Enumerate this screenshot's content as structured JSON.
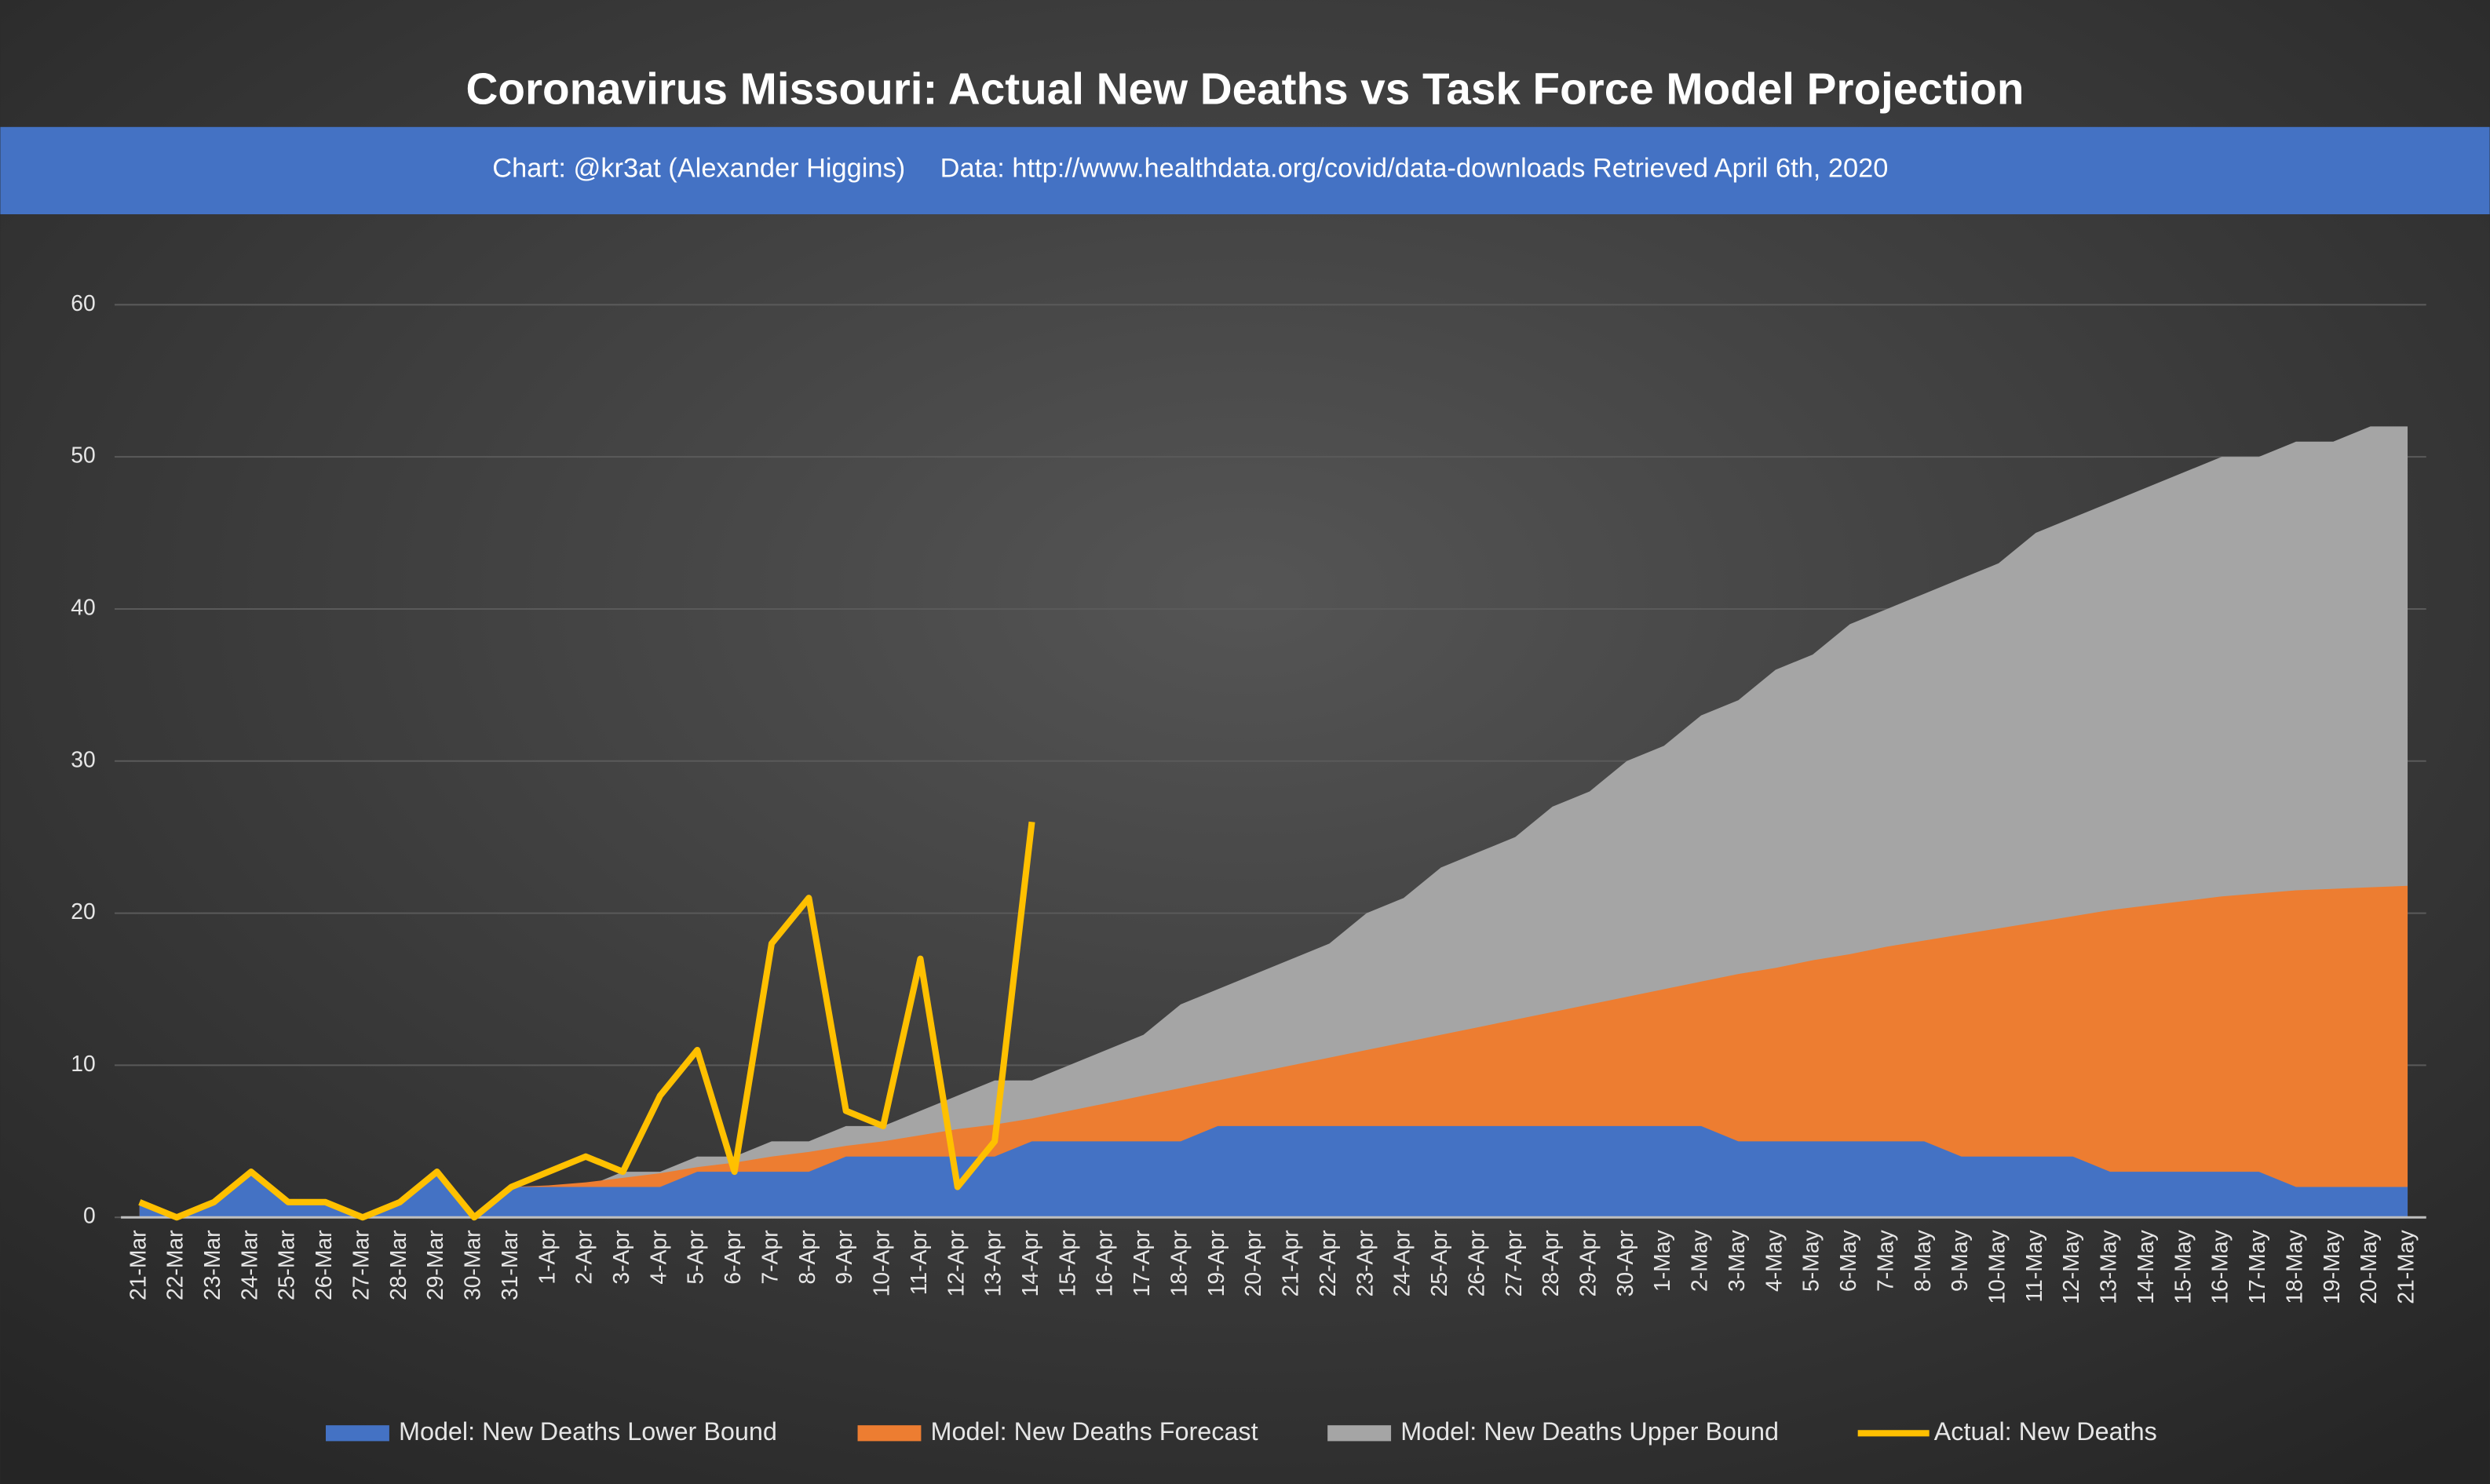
{
  "chart_data": {
    "type": "area-line",
    "title": "Coronavirus Missouri: Actual New Deaths vs Task Force Model Projection",
    "subtitle": [
      "Chart: @kr3at (Alexander Higgins)",
      "Data: http://www.healthdata.org/covid/data-downloads Retrieved April 6th, 2020"
    ],
    "categories": [
      "21-Mar",
      "22-Mar",
      "23-Mar",
      "24-Mar",
      "25-Mar",
      "26-Mar",
      "27-Mar",
      "28-Mar",
      "29-Mar",
      "30-Mar",
      "31-Mar",
      "1-Apr",
      "2-Apr",
      "3-Apr",
      "4-Apr",
      "5-Apr",
      "6-Apr",
      "7-Apr",
      "8-Apr",
      "9-Apr",
      "10-Apr",
      "11-Apr",
      "12-Apr",
      "13-Apr",
      "14-Apr",
      "15-Apr",
      "16-Apr",
      "17-Apr",
      "18-Apr",
      "19-Apr",
      "20-Apr",
      "21-Apr",
      "22-Apr",
      "23-Apr",
      "24-Apr",
      "25-Apr",
      "26-Apr",
      "27-Apr",
      "28-Apr",
      "29-Apr",
      "30-Apr",
      "1-May",
      "2-May",
      "3-May",
      "4-May",
      "5-May",
      "6-May",
      "7-May",
      "8-May",
      "9-May",
      "10-May",
      "11-May",
      "12-May",
      "13-May",
      "14-May",
      "15-May",
      "16-May",
      "17-May",
      "18-May",
      "19-May",
      "20-May",
      "21-May"
    ],
    "series": [
      {
        "name": "Model: New Deaths Upper Bound",
        "color": "#a5a5a5",
        "kind": "area",
        "values": [
          1,
          0,
          1,
          3,
          1,
          1,
          0,
          1,
          3,
          0,
          2,
          2,
          2,
          3,
          3,
          4,
          4,
          5,
          5,
          6,
          6,
          7,
          8,
          9,
          9,
          10,
          11,
          12,
          14,
          15,
          16,
          17,
          18,
          20,
          21,
          23,
          24,
          25,
          27,
          28,
          30,
          31,
          33,
          34,
          36,
          37,
          39,
          40,
          41,
          42,
          43,
          45,
          46,
          47,
          48,
          49,
          50,
          50,
          51,
          51,
          52,
          52
        ]
      },
      {
        "name": "Model: New Deaths Forecast",
        "color": "#ed7d31",
        "kind": "area",
        "values": [
          1,
          0,
          1,
          3,
          1,
          1,
          0,
          1,
          3,
          0,
          2,
          2.1,
          2.3,
          2.6,
          2.9,
          3.3,
          3.6,
          4.0,
          4.3,
          4.7,
          5.0,
          5.4,
          5.8,
          6.1,
          6.5,
          7.0,
          7.5,
          8.0,
          8.5,
          9.0,
          9.5,
          10.0,
          10.5,
          11.0,
          11.5,
          12.0,
          12.5,
          13.0,
          13.5,
          14.0,
          14.5,
          15.0,
          15.5,
          16.0,
          16.4,
          16.9,
          17.3,
          17.8,
          18.2,
          18.6,
          19.0,
          19.4,
          19.8,
          20.2,
          20.5,
          20.8,
          21.1,
          21.3,
          21.5,
          21.6,
          21.7,
          21.8
        ]
      },
      {
        "name": "Model: New Deaths Lower Bound",
        "color": "#4472c4",
        "kind": "area",
        "values": [
          1,
          0,
          1,
          3,
          1,
          1,
          0,
          1,
          3,
          0,
          2,
          2,
          2,
          2,
          2,
          3,
          3,
          3,
          3,
          4,
          4,
          4,
          4,
          4,
          5,
          5,
          5,
          5,
          5,
          6,
          6,
          6,
          6,
          6,
          6,
          6,
          6,
          6,
          6,
          6,
          6,
          6,
          6,
          5,
          5,
          5,
          5,
          5,
          5,
          4,
          4,
          4,
          4,
          3,
          3,
          3,
          3,
          3,
          2,
          2,
          2,
          2
        ]
      },
      {
        "name": "Actual: New Deaths",
        "color": "#ffc000",
        "kind": "line",
        "values": [
          1,
          0,
          1,
          3,
          1,
          1,
          0,
          1,
          3,
          0,
          2,
          3,
          4,
          3,
          8,
          11,
          3,
          18,
          21,
          7,
          6,
          17,
          2,
          5,
          26,
          null,
          null,
          null,
          null,
          null,
          null,
          null,
          null,
          null,
          null,
          null,
          null,
          null,
          null,
          null,
          null,
          null,
          null,
          null,
          null,
          null,
          null,
          null,
          null,
          null,
          null,
          null,
          null,
          null,
          null,
          null,
          null,
          null,
          null,
          null,
          null,
          null
        ]
      }
    ],
    "legend_order": [
      2,
      1,
      0,
      3
    ],
    "ylim": [
      0,
      60
    ],
    "yticks": [
      0,
      10,
      20,
      30,
      40,
      50,
      60
    ],
    "grid": true
  }
}
